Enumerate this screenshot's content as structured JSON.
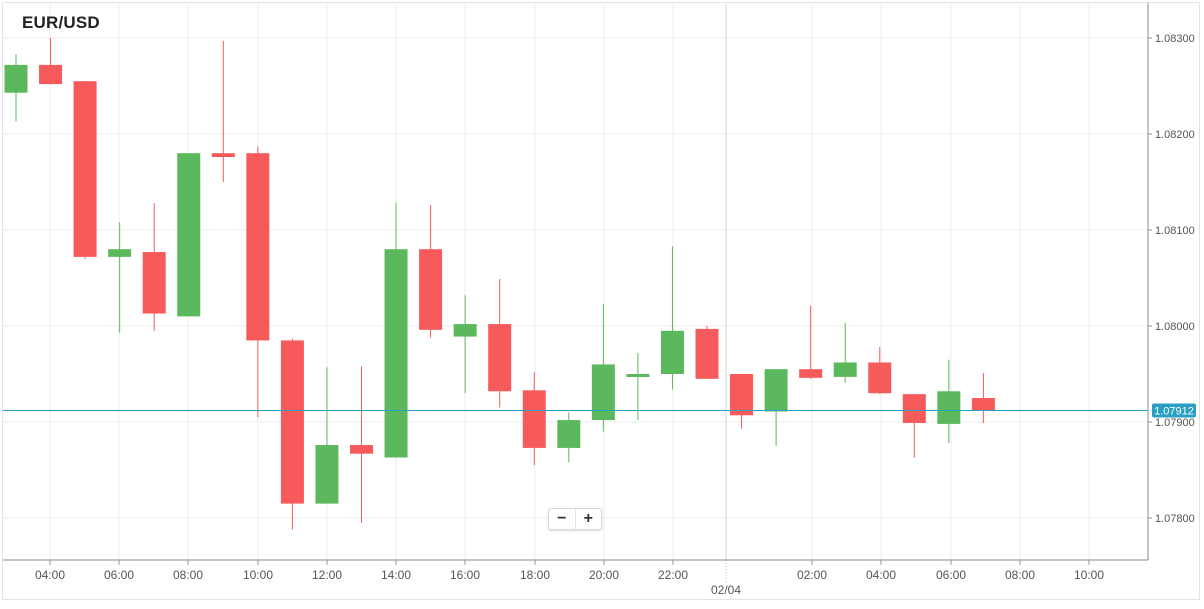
{
  "header": {
    "title": "EUR/USD"
  },
  "zoom_controls": {
    "minus_label": "−",
    "plus_label": "+"
  },
  "colors": {
    "bull": "#5cb85c",
    "bear": "#f65a5b",
    "price_line": "#2a9fc4",
    "grid": "#ececec",
    "axis_text": "#555555"
  },
  "chart_data": {
    "type": "candlestick",
    "title": "EUR/USD",
    "xlabel": "",
    "ylabel": "",
    "ylim": [
      1.0776,
      1.0832
    ],
    "y_ticks": [
      "1.08300",
      "1.08200",
      "1.08100",
      "1.08000",
      "1.07900",
      "1.07800"
    ],
    "x_ticks": [
      "04:00",
      "06:00",
      "08:00",
      "10:00",
      "12:00",
      "14:00",
      "16:00",
      "18:00",
      "20:00",
      "22:00",
      "02:00",
      "04:00",
      "06:00",
      "08:00",
      "10:00"
    ],
    "date_label": "02/04",
    "current_price": "1.07912",
    "grid": true,
    "candles": [
      {
        "open": 1.08243,
        "high": 1.08283,
        "low": 1.08213,
        "close": 1.08272
      },
      {
        "open": 1.08272,
        "high": 1.083,
        "low": 1.08252,
        "close": 1.08252
      },
      {
        "open": 1.08255,
        "high": 1.08255,
        "low": 1.0807,
        "close": 1.08072
      },
      {
        "open": 1.08072,
        "high": 1.08108,
        "low": 1.07993,
        "close": 1.0808
      },
      {
        "open": 1.08077,
        "high": 1.08128,
        "low": 1.07995,
        "close": 1.08013
      },
      {
        "open": 1.0801,
        "high": 1.0818,
        "low": 1.0801,
        "close": 1.0818
      },
      {
        "open": 1.0818,
        "high": 1.08297,
        "low": 1.0815,
        "close": 1.08176
      },
      {
        "open": 1.0818,
        "high": 1.08187,
        "low": 1.07905,
        "close": 1.07985
      },
      {
        "open": 1.07985,
        "high": 1.07987,
        "low": 1.07788,
        "close": 1.07815
      },
      {
        "open": 1.07815,
        "high": 1.07957,
        "low": 1.07815,
        "close": 1.07876
      },
      {
        "open": 1.07876,
        "high": 1.07958,
        "low": 1.07795,
        "close": 1.07867
      },
      {
        "open": 1.07863,
        "high": 1.08128,
        "low": 1.07863,
        "close": 1.0808
      },
      {
        "open": 1.0808,
        "high": 1.08126,
        "low": 1.07988,
        "close": 1.07996
      },
      {
        "open": 1.07989,
        "high": 1.08032,
        "low": 1.0793,
        "close": 1.08002
      },
      {
        "open": 1.08002,
        "high": 1.08049,
        "low": 1.07915,
        "close": 1.07932
      },
      {
        "open": 1.07933,
        "high": 1.07952,
        "low": 1.07855,
        "close": 1.07873
      },
      {
        "open": 1.07873,
        "high": 1.0791,
        "low": 1.07858,
        "close": 1.07902
      },
      {
        "open": 1.07902,
        "high": 1.08023,
        "low": 1.0789,
        "close": 1.0796
      },
      {
        "open": 1.07947,
        "high": 1.07972,
        "low": 1.07902,
        "close": 1.0795
      },
      {
        "open": 1.0795,
        "high": 1.08083,
        "low": 1.07934,
        "close": 1.07995
      },
      {
        "open": 1.07997,
        "high": 1.08,
        "low": 1.07945,
        "close": 1.07945
      },
      {
        "open": 1.0795,
        "high": 1.0795,
        "low": 1.07893,
        "close": 1.07907
      },
      {
        "open": 1.07911,
        "high": 1.07955,
        "low": 1.07875,
        "close": 1.07955
      },
      {
        "open": 1.07955,
        "high": 1.08021,
        "low": 1.07945,
        "close": 1.07946
      },
      {
        "open": 1.07947,
        "high": 1.08003,
        "low": 1.07941,
        "close": 1.07962
      },
      {
        "open": 1.07962,
        "high": 1.07978,
        "low": 1.07929,
        "close": 1.0793
      },
      {
        "open": 1.07929,
        "high": 1.07929,
        "low": 1.07863,
        "close": 1.07899
      },
      {
        "open": 1.07898,
        "high": 1.07965,
        "low": 1.07878,
        "close": 1.07932
      },
      {
        "open": 1.07925,
        "high": 1.07951,
        "low": 1.07899,
        "close": 1.07912
      }
    ]
  }
}
